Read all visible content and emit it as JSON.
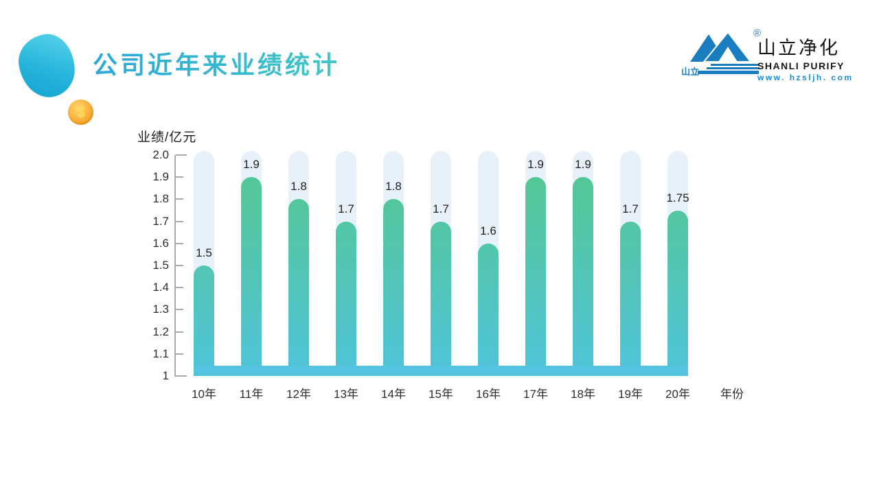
{
  "slide": {
    "title": "公司近年来业绩统计",
    "coin_symbol": "$"
  },
  "logo": {
    "mark_label": "山立",
    "registered_mark": "®",
    "name_cn": "山立净化",
    "name_en": "SHANLI PURIFY",
    "website": "www. hzsljh. com"
  },
  "chart_data": {
    "type": "bar",
    "title": "公司近年来业绩统计",
    "ylabel": "业绩/亿元",
    "xlabel": "年份",
    "categories": [
      "10年",
      "11年",
      "12年",
      "13年",
      "14年",
      "15年",
      "16年",
      "17年",
      "18年",
      "19年",
      "20年"
    ],
    "values": [
      1.5,
      1.9,
      1.8,
      1.7,
      1.8,
      1.7,
      1.6,
      1.9,
      1.9,
      1.7,
      1.75
    ],
    "value_labels": [
      "1.5",
      "1.9",
      "1.8",
      "1.7",
      "1.8",
      "1.7",
      "1.6",
      "1.9",
      "1.9",
      "1.7",
      "1.75"
    ],
    "yticks": [
      "2.0",
      "1.9",
      "1.8",
      "1.7",
      "1.6",
      "1.5",
      "1.4",
      "1.3",
      "1.2",
      "1.1",
      "1"
    ],
    "ylim": [
      1,
      2
    ],
    "grid": false,
    "legend": false,
    "colors": {
      "bar_gradient_top": "#55c78f",
      "bar_gradient_bottom": "#4fc3da",
      "track": "#e8f1fa",
      "baseline_strip": "#54c3e0",
      "axis": "#a6abb1",
      "label_text": "#2d2d2d",
      "title_gradient_left": "#2ba8d9",
      "title_gradient_right": "#43c6c5",
      "logo_blue": "#1a7dc0",
      "coin_orange": "#f7a62e",
      "blob_teal": "#1fb4dc"
    }
  }
}
